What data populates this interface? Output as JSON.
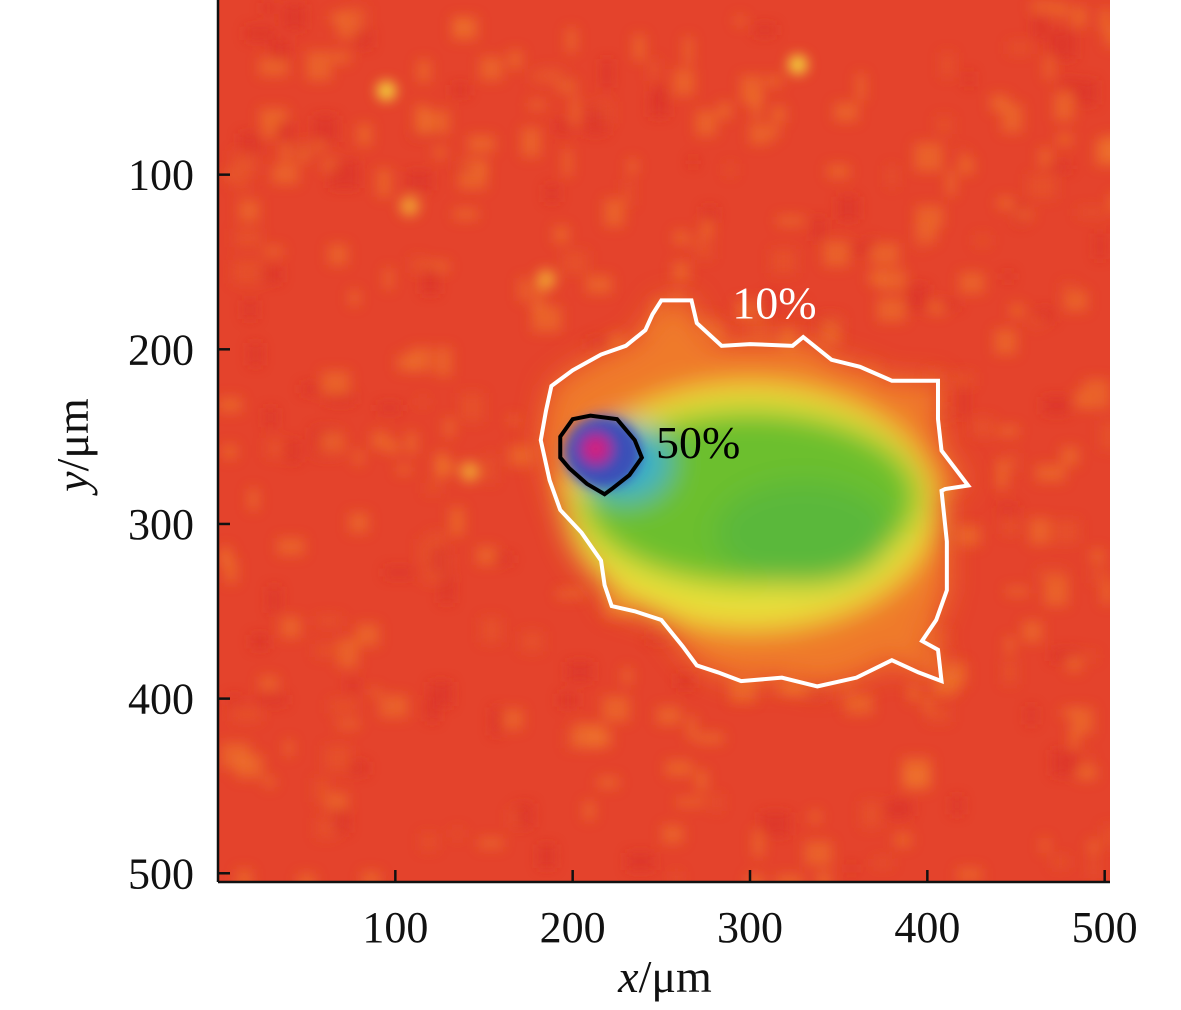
{
  "chart_data": {
    "type": "heatmap",
    "title": "",
    "xlabel_italic": "x",
    "xlabel_unit": "/μm",
    "ylabel_italic": "y",
    "ylabel_unit": "/μm",
    "xlim": [
      0,
      503
    ],
    "ylim": [
      0,
      505
    ],
    "y_inverted": true,
    "xticks": [
      100,
      200,
      300,
      400,
      500
    ],
    "yticks": [
      100,
      200,
      300,
      400,
      500
    ],
    "colormap": [
      "#e23a2a",
      "#ef7a2a",
      "#e9e03a",
      "#6cbf2e",
      "#3ab0c8",
      "#3a4fb8",
      "#d8207a"
    ],
    "colors": {
      "background": "#e4432c",
      "contour_10": "#ffffff",
      "contour_50": "#000000"
    },
    "contours": [
      {
        "label": "10%",
        "color": "#ffffff",
        "label_at": [
          290,
          172
        ],
        "points": [
          [
            250,
            172
          ],
          [
            267,
            172
          ],
          [
            270,
            185
          ],
          [
            284,
            198
          ],
          [
            300,
            197
          ],
          [
            324,
            198
          ],
          [
            330,
            193
          ],
          [
            346,
            206
          ],
          [
            362,
            210
          ],
          [
            380,
            218
          ],
          [
            395,
            218
          ],
          [
            406,
            218
          ],
          [
            406,
            240
          ],
          [
            408,
            258
          ],
          [
            423,
            278
          ],
          [
            410,
            280
          ],
          [
            408,
            281
          ],
          [
            411,
            310
          ],
          [
            411,
            338
          ],
          [
            405,
            355
          ],
          [
            397,
            367
          ],
          [
            406,
            372
          ],
          [
            408,
            390
          ],
          [
            395,
            385
          ],
          [
            380,
            378
          ],
          [
            360,
            388
          ],
          [
            338,
            393
          ],
          [
            318,
            388
          ],
          [
            295,
            390
          ],
          [
            282,
            385
          ],
          [
            270,
            381
          ],
          [
            262,
            370
          ],
          [
            250,
            355
          ],
          [
            235,
            350
          ],
          [
            222,
            347
          ],
          [
            218,
            335
          ],
          [
            216,
            321
          ],
          [
            205,
            305
          ],
          [
            193,
            292
          ],
          [
            187,
            275
          ],
          [
            182,
            252
          ],
          [
            185,
            235
          ],
          [
            188,
            221
          ],
          [
            200,
            212
          ],
          [
            216,
            203
          ],
          [
            230,
            198
          ],
          [
            241,
            189
          ],
          [
            245,
            180
          ]
        ]
      },
      {
        "label": "50%",
        "color": "#000000",
        "label_at": [
          247,
          252
        ],
        "points": [
          [
            193,
            250
          ],
          [
            200,
            240
          ],
          [
            210,
            238
          ],
          [
            225,
            240
          ],
          [
            235,
            252
          ],
          [
            239,
            262
          ],
          [
            232,
            272
          ],
          [
            222,
            280
          ],
          [
            218,
            283
          ],
          [
            208,
            277
          ],
          [
            198,
            268
          ],
          [
            193,
            262
          ]
        ]
      }
    ],
    "features": [
      {
        "name": "peak",
        "x": 213,
        "y": 257,
        "level": "max"
      },
      {
        "name": "plume-core",
        "x": 320,
        "y": 300,
        "level": "medium"
      }
    ]
  }
}
